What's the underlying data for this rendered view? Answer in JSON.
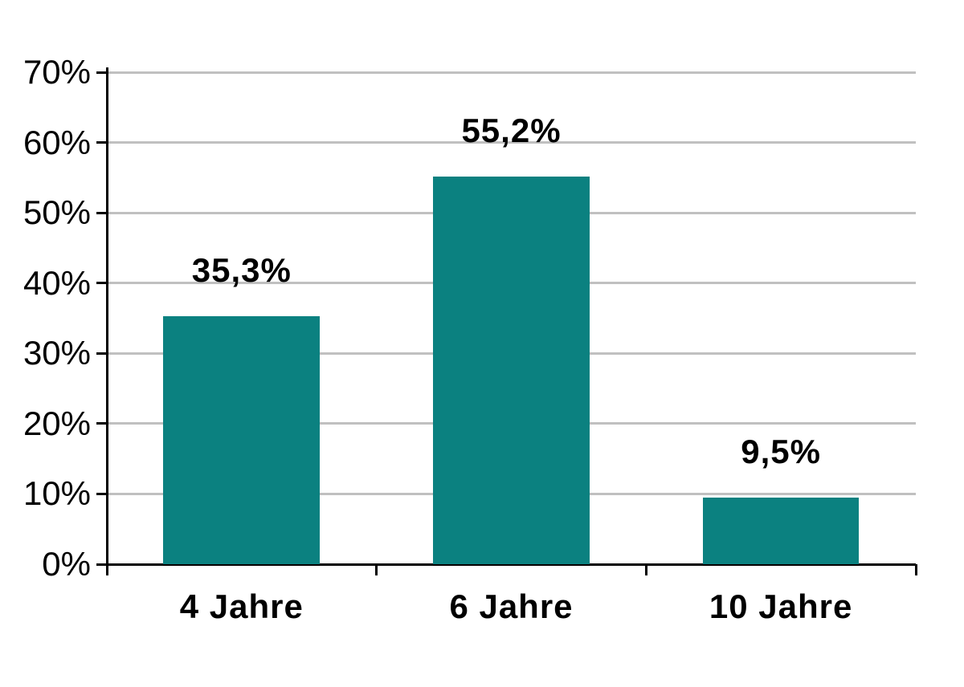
{
  "chart_data": {
    "type": "bar",
    "title": "",
    "xlabel": "",
    "ylabel": "",
    "categories": [
      "4 Jahre",
      "6 Jahre",
      "10 Jahre"
    ],
    "values": [
      35.3,
      55.2,
      9.5
    ],
    "value_labels": [
      "35,3%",
      "55,2%",
      "9,5%"
    ],
    "ylim": [
      0,
      70
    ],
    "ytick_step": 10,
    "ytick_labels": [
      "0%",
      "10%",
      "20%",
      "30%",
      "40%",
      "50%",
      "60%",
      "70%"
    ],
    "grid": true,
    "legend": false,
    "decimal_separator": ",",
    "colors": {
      "bar": "#0b8180",
      "gridline": "#c0c0c0",
      "axis": "#000000",
      "background": "#ffffff",
      "text": "#000000"
    }
  }
}
